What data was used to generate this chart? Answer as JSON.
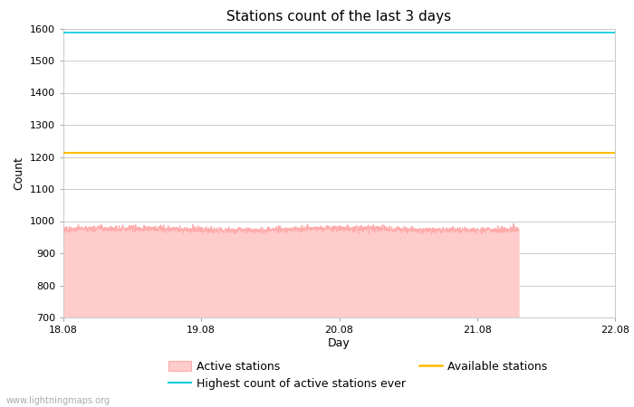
{
  "title": "Stations count of the last 3 days",
  "xlabel": "Day",
  "ylabel": "Count",
  "ylim": [
    700,
    1600
  ],
  "yticks": [
    700,
    800,
    900,
    1000,
    1100,
    1200,
    1300,
    1400,
    1500,
    1600
  ],
  "x_start": 18.08,
  "x_end": 22.08,
  "xticks": [
    18.08,
    19.08,
    20.08,
    21.08,
    22.08
  ],
  "xtick_labels": [
    "18.08",
    "19.08",
    "20.08",
    "21.08",
    "22.08"
  ],
  "highest_ever": 1586,
  "available_stations": 1214,
  "active_mean": 974,
  "active_noise": 5,
  "active_end_x": 21.38,
  "active_color_fill": "#ffcccc",
  "active_color_line": "#ffaaaa",
  "highest_color": "#00ccdd",
  "available_color": "#ffbb00",
  "background_color": "#ffffff",
  "grid_color": "#cccccc",
  "watermark": "www.lightningmaps.org",
  "title_fontsize": 11,
  "axis_fontsize": 9,
  "tick_fontsize": 8,
  "watermark_fontsize": 7,
  "legend_fontsize": 9
}
